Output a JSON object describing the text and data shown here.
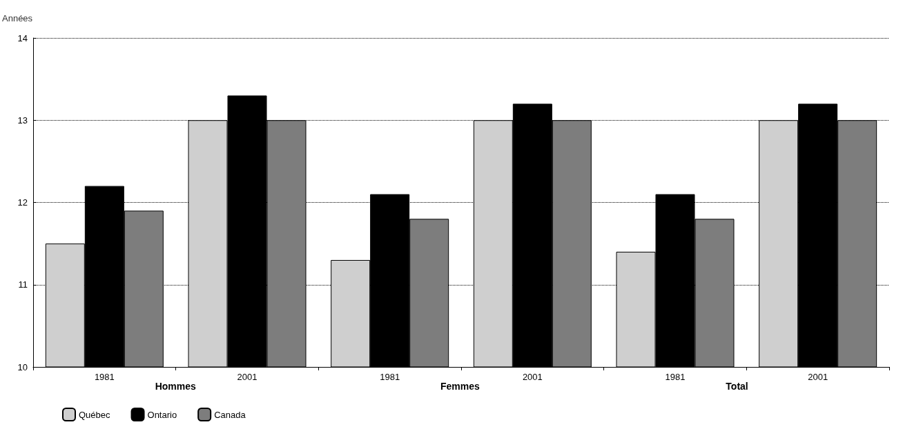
{
  "chart_data": {
    "type": "bar",
    "ylabel": "Années",
    "categories": [
      "1981",
      "2001",
      "1981",
      "2001",
      "1981",
      "2001"
    ],
    "annotations": [
      "Hommes",
      "Femmes",
      "Total"
    ],
    "series": [
      {
        "name": "Québec",
        "color": "#cfcfcf",
        "values": [
          11.5,
          13.0,
          11.3,
          13.0,
          11.4,
          13.0
        ]
      },
      {
        "name": "Ontario",
        "color": "#000000",
        "values": [
          12.2,
          13.3,
          12.1,
          13.2,
          12.1,
          13.2
        ]
      },
      {
        "name": "Canada",
        "color": "#7d7d7d",
        "values": [
          11.9,
          13.0,
          11.8,
          13.0,
          11.8,
          13.0
        ]
      }
    ],
    "ylim": [
      10,
      14
    ],
    "yticks": [
      10,
      11,
      12,
      13,
      14
    ],
    "grid": "y",
    "legend": "bottom left"
  }
}
